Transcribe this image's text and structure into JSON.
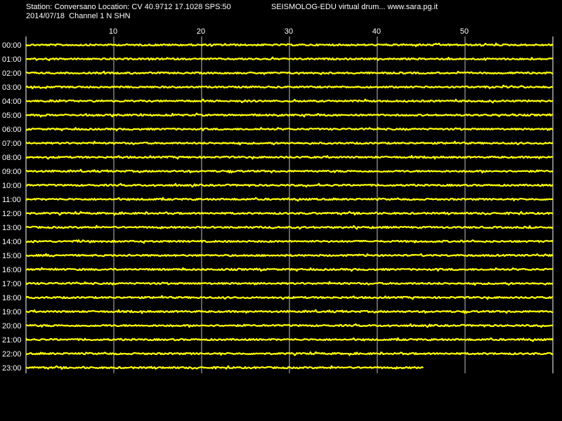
{
  "header": {
    "station_line": "Station: Conversano Location: CV 40.9712 17.1028 SPS:50",
    "date_line": "2014/07/18  Channel 1 N SHN",
    "credit_line": "SEISMOLOG-EDU virtual drum... www.sara.pg.it"
  },
  "colors": {
    "background": "#000000",
    "trace": "#ffff00",
    "grid": "#ffffff",
    "text": "#ffffff"
  },
  "chart_data": {
    "type": "line",
    "title": "",
    "xlabel": "",
    "ylabel": "",
    "xlim": [
      0,
      60
    ],
    "x_ticks": [
      10,
      20,
      30,
      40,
      50
    ],
    "x_tick_labels": [
      "10",
      "20",
      "30",
      "40",
      "50"
    ],
    "grid": true,
    "hours": [
      "00:00",
      "01:00",
      "02:00",
      "03:00",
      "04:00",
      "05:00",
      "06:00",
      "07:00",
      "08:00",
      "09:00",
      "10:00",
      "11:00",
      "12:00",
      "13:00",
      "14:00",
      "15:00",
      "16:00",
      "17:00",
      "18:00",
      "19:00",
      "20:00",
      "21:00",
      "22:00",
      "23:00"
    ],
    "trace_end_minutes": [
      60,
      60,
      60,
      60,
      60,
      60,
      60,
      60,
      60,
      60,
      60,
      60,
      60,
      60,
      60,
      60,
      60,
      60,
      60,
      60,
      60,
      60,
      60,
      45.3
    ]
  }
}
